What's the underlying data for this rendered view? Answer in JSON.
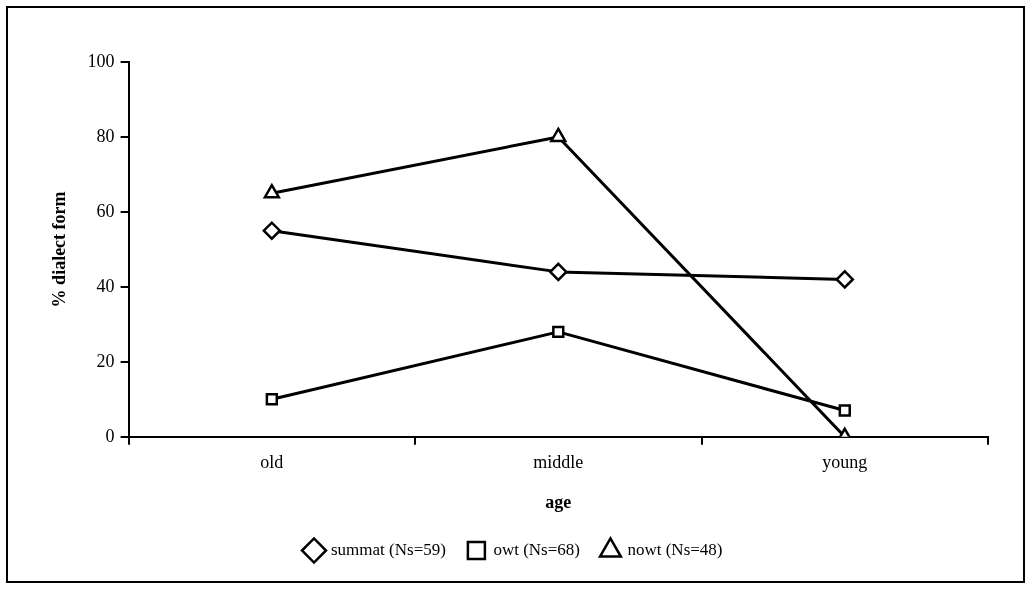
{
  "chart_data": {
    "type": "line",
    "xlabel": "age",
    "ylabel": "% dialect form",
    "categories": [
      "old",
      "middle",
      "young"
    ],
    "series": [
      {
        "name": "summat (Ns=59)",
        "color": "#000000",
        "marker": "diamond",
        "values": [
          55,
          44,
          42
        ]
      },
      {
        "name": "owt (Ns=68)",
        "color": "#000000",
        "marker": "square",
        "values": [
          10,
          28,
          7
        ]
      },
      {
        "name": "nowt (Ns=48)",
        "color": "#000000",
        "marker": "triangle",
        "values": [
          65,
          80,
          0
        ]
      }
    ],
    "ylim": [
      0,
      100
    ],
    "yticks": [
      0,
      20,
      40,
      60,
      80,
      100
    ],
    "grid": false,
    "legend": "bottom",
    "line_style": "solid"
  }
}
